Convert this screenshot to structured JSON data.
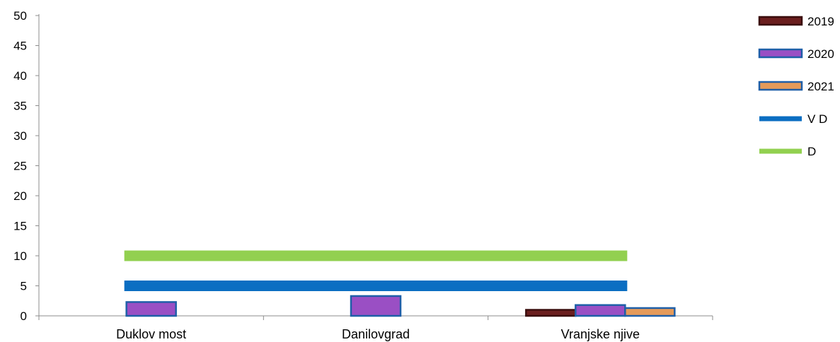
{
  "chart_data": {
    "type": "bar",
    "title": "",
    "xlabel": "",
    "ylabel": "",
    "categories": [
      "Duklov most",
      "Danilovgrad",
      "Vranjske njive"
    ],
    "ylim": [
      0,
      50
    ],
    "yticks": [
      0,
      5,
      10,
      15,
      20,
      25,
      30,
      35,
      40,
      45,
      50
    ],
    "grid": false,
    "legend_position": "right",
    "series": [
      {
        "name": "2019",
        "kind": "bar",
        "values": [
          null,
          null,
          1.0
        ],
        "color": "#6b1f1f",
        "border": "#3a0e0e"
      },
      {
        "name": "2020",
        "kind": "bar",
        "values": [
          2.3,
          3.3,
          1.8
        ],
        "color": "#9a4fc4",
        "border": "#1f5fa8"
      },
      {
        "name": "2021",
        "kind": "bar",
        "values": [
          null,
          null,
          1.3
        ],
        "color": "#e59a5a",
        "border": "#1f5fa8"
      },
      {
        "name": "V D",
        "kind": "line",
        "value": 5,
        "color": "#0b6ec2"
      },
      {
        "name": "D",
        "kind": "line",
        "value": 10,
        "color": "#92d050"
      }
    ]
  }
}
